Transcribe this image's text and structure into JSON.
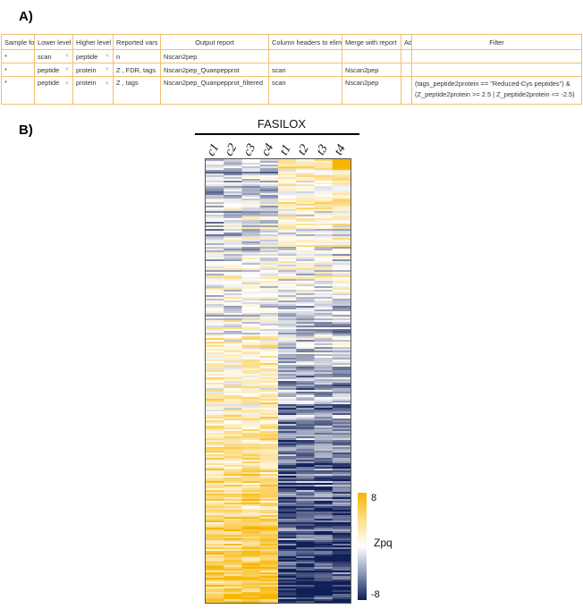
{
  "panel_a": {
    "label": "A)",
    "columns": [
      "Sample fo",
      "Lower level",
      "Higher level",
      "Reported vars",
      "Output report",
      "Column headers to elim",
      "Merge with report",
      "Ad",
      "Filter"
    ],
    "rows": [
      {
        "sample": "*",
        "lower": "scan",
        "higher": "peptide",
        "vars": "n",
        "output": "Nscan2pep",
        "headers": "",
        "merge": "",
        "ad": "",
        "filter_line1": "",
        "filter_line2": ""
      },
      {
        "sample": "*",
        "lower": "peptide",
        "higher": "protein",
        "vars": "Z , FDR, tags",
        "output": "Nscan2pep_Quanpepprot",
        "headers": "scan",
        "merge": "Nscan2pep",
        "ad": "",
        "filter_line1": "",
        "filter_line2": ""
      },
      {
        "sample": "*",
        "lower": "peptide",
        "higher": "protein",
        "vars": "Z , tags",
        "output": "Nscan2pep_Quanpepprot_filtered",
        "headers": "scan",
        "merge": "Nscan2pep",
        "ad": "",
        "filter_line1": "(tags_peptide2protein == \"Reduced-Cys peptides\") &",
        "filter_line2": "(Z_peptide2protein >= 2.5 | Z_peptide2protein <= -2.5)"
      }
    ],
    "dropdown_icon": "chevron-down-icon"
  },
  "panel_b": {
    "label": "B)",
    "group_title": "FASILOX",
    "column_labels": [
      "c1",
      "c2",
      "c3",
      "c4",
      "t1",
      "t2",
      "t3",
      "t4"
    ],
    "colorbar": {
      "title": "Zpq",
      "max_label": "8",
      "min_label": "-8",
      "max": 8,
      "min": -8
    },
    "colors": {
      "high": "#f7b500",
      "mid": "#ffffff",
      "low": "#0f1f58"
    }
  }
}
